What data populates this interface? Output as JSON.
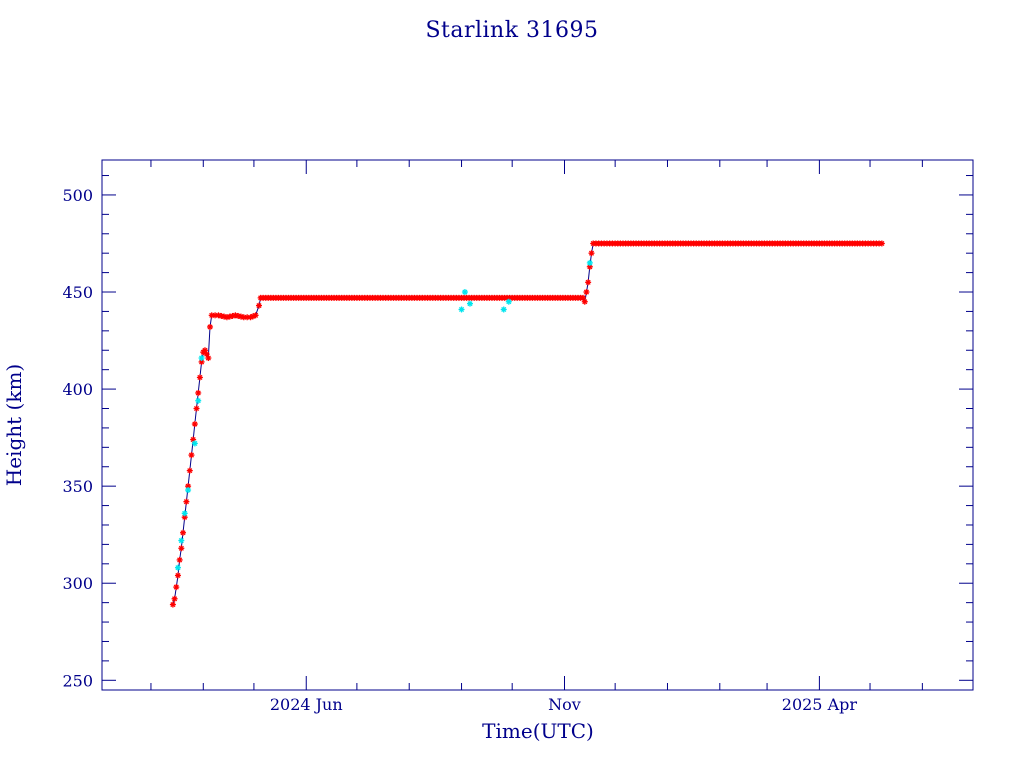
{
  "colors": {
    "frame": "#00008b",
    "text": "#00008b",
    "marker_primary": "#ff0000",
    "marker_secondary": "#00e5ee",
    "connector_line": "#00008b"
  },
  "chart_data": {
    "type": "scatter",
    "title": "Starlink 31695",
    "xlabel": "Time(UTC)",
    "ylabel": "Height (km)",
    "grid": false,
    "legend": "none",
    "x_axis": {
      "kind": "date",
      "range": [
        "2024-02-01",
        "2025-07-01"
      ],
      "ticks": [
        {
          "date": "2024-06-01",
          "label": "2024 Jun"
        },
        {
          "date": "2024-11-01",
          "label": "Nov"
        },
        {
          "date": "2025-04-01",
          "label": "2025 Apr"
        }
      ]
    },
    "y_axis": {
      "range": [
        245,
        518
      ],
      "ticks": [
        250,
        300,
        350,
        400,
        450,
        500
      ],
      "minor_step": 10
    },
    "series": [
      {
        "role": "main",
        "marker": "asterisk",
        "color": "#ff0000",
        "points": [
          [
            "2024-03-14",
            289
          ],
          [
            "2024-03-15",
            292
          ],
          [
            "2024-03-16",
            298
          ],
          [
            "2024-03-17",
            304
          ],
          [
            "2024-03-18",
            312
          ],
          [
            "2024-03-19",
            318
          ],
          [
            "2024-03-20",
            326
          ],
          [
            "2024-03-21",
            334
          ],
          [
            "2024-03-22",
            342
          ],
          [
            "2024-03-23",
            350
          ],
          [
            "2024-03-24",
            358
          ],
          [
            "2024-03-25",
            366
          ],
          [
            "2024-03-26",
            374
          ],
          [
            "2024-03-27",
            382
          ],
          [
            "2024-03-28",
            390
          ],
          [
            "2024-03-29",
            398
          ],
          [
            "2024-03-30",
            406
          ],
          [
            "2024-03-31",
            414
          ],
          [
            "2024-04-01",
            419
          ],
          [
            "2024-04-02",
            420
          ],
          [
            "2024-04-03",
            418
          ],
          [
            "2024-04-04",
            416
          ],
          [
            "2024-04-05",
            432
          ],
          [
            "2024-04-06",
            438
          ],
          [
            "2024-04-10",
            438
          ],
          [
            "2024-04-15",
            437
          ],
          [
            "2024-04-20",
            438
          ],
          [
            "2024-04-25",
            437
          ],
          [
            "2024-04-29",
            437
          ],
          [
            "2024-05-02",
            438
          ],
          [
            "2024-05-04",
            443
          ],
          [
            "2024-05-05",
            447
          ],
          [
            "2024-06-01",
            447
          ],
          [
            "2024-07-01",
            447
          ],
          [
            "2024-08-01",
            447
          ],
          [
            "2024-09-01",
            447
          ],
          [
            "2024-10-01",
            447
          ],
          [
            "2024-10-25",
            447
          ],
          [
            "2024-11-12",
            447
          ],
          [
            "2024-11-13",
            445
          ],
          [
            "2024-11-14",
            450
          ],
          [
            "2024-11-15",
            455
          ],
          [
            "2024-11-16",
            463
          ],
          [
            "2024-11-17",
            470
          ],
          [
            "2024-11-18",
            475
          ],
          [
            "2024-12-01",
            475
          ],
          [
            "2025-01-01",
            475
          ],
          [
            "2025-02-01",
            475
          ],
          [
            "2025-03-01",
            475
          ],
          [
            "2025-04-01",
            475
          ],
          [
            "2025-04-25",
            475
          ],
          [
            "2025-05-08",
            475
          ]
        ]
      },
      {
        "role": "secondary",
        "marker": "asterisk",
        "color": "#00e5ee",
        "points": [
          [
            "2024-03-17",
            308
          ],
          [
            "2024-03-19",
            322
          ],
          [
            "2024-03-21",
            336
          ],
          [
            "2024-03-23",
            348
          ],
          [
            "2024-03-27",
            372
          ],
          [
            "2024-03-29",
            394
          ],
          [
            "2024-03-31",
            416
          ],
          [
            "2024-09-01",
            441
          ],
          [
            "2024-09-03",
            450
          ],
          [
            "2024-09-06",
            444
          ],
          [
            "2024-09-26",
            441
          ],
          [
            "2024-09-29",
            445
          ],
          [
            "2024-11-16",
            465
          ]
        ]
      }
    ]
  }
}
